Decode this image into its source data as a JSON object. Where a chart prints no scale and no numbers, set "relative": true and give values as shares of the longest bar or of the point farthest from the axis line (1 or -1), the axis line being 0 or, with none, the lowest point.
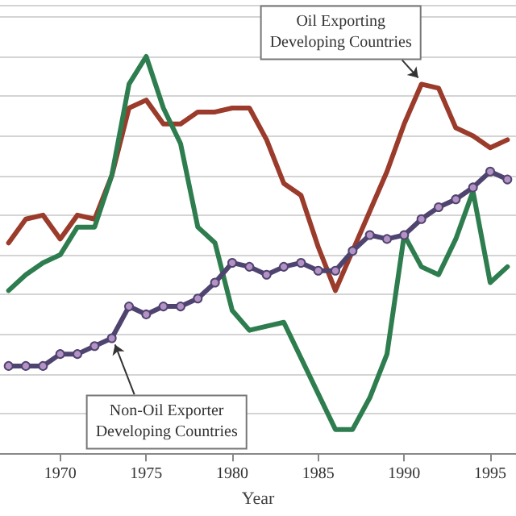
{
  "chart_data": {
    "type": "line",
    "relative": true,
    "xlabel": "Year",
    "xlim": [
      1966.5,
      1996.5
    ],
    "xticks": [
      1970,
      1975,
      1980,
      1985,
      1990,
      1995
    ],
    "grid": "y",
    "line_style": "solid",
    "x": [
      1967,
      1968,
      1969,
      1970,
      1971,
      1972,
      1973,
      1974,
      1975,
      1976,
      1977,
      1978,
      1979,
      1980,
      1981,
      1982,
      1983,
      1984,
      1985,
      1986,
      1987,
      1988,
      1989,
      1990,
      1991,
      1992,
      1993,
      1994,
      1995,
      1996
    ],
    "series": [
      {
        "color": "#9b3b2b",
        "marker": "none",
        "values": [
          0.53,
          0.59,
          0.6,
          0.54,
          0.6,
          0.59,
          0.7,
          0.87,
          0.89,
          0.83,
          0.83,
          0.86,
          0.86,
          0.87,
          0.87,
          0.79,
          0.68,
          0.65,
          0.52,
          0.41,
          0.51,
          0.61,
          0.71,
          0.83,
          0.93,
          0.92,
          0.82,
          0.8,
          0.77,
          0.79
        ]
      },
      {
        "color": "#2e7d4f",
        "marker": "none",
        "values": [
          0.41,
          0.45,
          0.48,
          0.5,
          0.57,
          0.57,
          0.7,
          0.93,
          1,
          0.87,
          0.78,
          0.57,
          0.53,
          0.36,
          0.31,
          0.32,
          0.33,
          0.24,
          0.15,
          0.06,
          0.06,
          0.14,
          0.25,
          0.55,
          0.47,
          0.45,
          0.54,
          0.66,
          0.43,
          0.47
        ]
      },
      {
        "color": "#4f4470",
        "marker": "circle",
        "values": [
          0.22,
          0.22,
          0.22,
          0.25,
          0.25,
          0.27,
          0.29,
          0.37,
          0.35,
          0.37,
          0.37,
          0.39,
          0.43,
          0.48,
          0.47,
          0.45,
          0.47,
          0.48,
          0.46,
          0.46,
          0.51,
          0.55,
          0.54,
          0.55,
          0.59,
          0.62,
          0.64,
          0.67,
          0.71,
          0.69
        ]
      }
    ],
    "annotations": [
      {
        "text": "Oil Exporting\nDeveloping Countries",
        "x": 1991,
        "y": 0.93
      },
      {
        "text": "Non-Oil Exporter\nDeveloping Countries",
        "x": 1973,
        "y": 0.29
      }
    ]
  }
}
